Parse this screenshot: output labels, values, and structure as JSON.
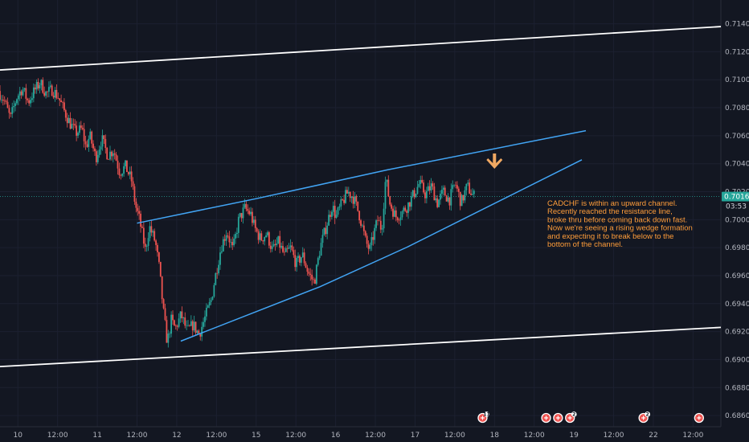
{
  "chart_data": {
    "type": "candlestick",
    "symbol": "CADCHF",
    "y_ticks": [
      "0.71400",
      "0.71200",
      "0.71000",
      "0.70800",
      "0.70600",
      "0.70400",
      "0.70200",
      "0.70000",
      "0.69800",
      "0.69600",
      "0.69400",
      "0.69200",
      "0.69000",
      "0.68800",
      "0.68600"
    ],
    "y_tick_values": [
      0.714,
      0.712,
      0.71,
      0.708,
      0.706,
      0.704,
      0.702,
      0.7,
      0.698,
      0.696,
      0.694,
      0.692,
      0.69,
      0.688,
      0.686
    ],
    "ylim": [
      0.6852,
      0.7157
    ],
    "x_ticks": [
      "10",
      "12:00",
      "11",
      "12:00",
      "12",
      "12:00",
      "15",
      "12:00",
      "16",
      "12:00",
      "17",
      "12:00",
      "18",
      "12:00",
      "19",
      "12:00",
      "22",
      "12:00"
    ],
    "x_tick_values": [
      0,
      1,
      2,
      3,
      4,
      5,
      6,
      7,
      8,
      9,
      10,
      11,
      12,
      13,
      14,
      15,
      16,
      17
    ],
    "xlim": [
      -0.45,
      17.7
    ],
    "current_price": "0.70165",
    "current_price_value": 0.70165,
    "countdown": "03:53",
    "candle_path": [
      [
        -0.45,
        0.7092
      ],
      [
        -0.3,
        0.7085
      ],
      [
        -0.15,
        0.7072
      ],
      [
        0.0,
        0.7087
      ],
      [
        0.15,
        0.7094
      ],
      [
        0.3,
        0.7084
      ],
      [
        0.45,
        0.7092
      ],
      [
        0.6,
        0.7098
      ],
      [
        0.75,
        0.709
      ],
      [
        0.9,
        0.7093
      ],
      [
        1.05,
        0.7088
      ],
      [
        1.2,
        0.7078
      ],
      [
        1.35,
        0.7069
      ],
      [
        1.5,
        0.7062
      ],
      [
        1.65,
        0.7065
      ],
      [
        1.75,
        0.7052
      ],
      [
        1.85,
        0.706
      ],
      [
        2.0,
        0.7044
      ],
      [
        2.15,
        0.7058
      ],
      [
        2.3,
        0.7046
      ],
      [
        2.45,
        0.705
      ],
      [
        2.6,
        0.7034
      ],
      [
        2.75,
        0.7038
      ],
      [
        2.9,
        0.7028
      ],
      [
        3.0,
        0.701
      ],
      [
        3.1,
        0.7
      ],
      [
        3.25,
        0.6978
      ],
      [
        3.35,
        0.6995
      ],
      [
        3.5,
        0.6984
      ],
      [
        3.6,
        0.6965
      ],
      [
        3.7,
        0.6935
      ],
      [
        3.8,
        0.6912
      ],
      [
        3.9,
        0.6928
      ],
      [
        4.0,
        0.6922
      ],
      [
        4.15,
        0.6932
      ],
      [
        4.3,
        0.692
      ],
      [
        4.45,
        0.6925
      ],
      [
        4.6,
        0.6918
      ],
      [
        4.75,
        0.693
      ],
      [
        4.9,
        0.6942
      ],
      [
        5.0,
        0.6958
      ],
      [
        5.15,
        0.698
      ],
      [
        5.3,
        0.6992
      ],
      [
        5.45,
        0.6978
      ],
      [
        5.6,
        0.7
      ],
      [
        5.75,
        0.7008
      ],
      [
        5.9,
        0.7004
      ],
      [
        6.0,
        0.6994
      ],
      [
        6.15,
        0.6986
      ],
      [
        6.3,
        0.699
      ],
      [
        6.45,
        0.6978
      ],
      [
        6.6,
        0.6984
      ],
      [
        6.75,
        0.6974
      ],
      [
        6.9,
        0.698
      ],
      [
        7.05,
        0.6968
      ],
      [
        7.2,
        0.6975
      ],
      [
        7.35,
        0.6962
      ],
      [
        7.5,
        0.6955
      ],
      [
        7.65,
        0.698
      ],
      [
        7.8,
        0.6995
      ],
      [
        7.95,
        0.701
      ],
      [
        8.05,
        0.7002
      ],
      [
        8.2,
        0.7012
      ],
      [
        8.35,
        0.702
      ],
      [
        8.5,
        0.7015
      ],
      [
        8.65,
        0.7002
      ],
      [
        8.8,
        0.6984
      ],
      [
        8.9,
        0.6978
      ],
      [
        9.0,
        0.699
      ],
      [
        9.1,
        0.7
      ],
      [
        9.2,
        0.6993
      ],
      [
        9.3,
        0.703
      ],
      [
        9.4,
        0.7012
      ],
      [
        9.55,
        0.7002
      ],
      [
        9.7,
        0.7005
      ],
      [
        9.85,
        0.701
      ],
      [
        10.0,
        0.7018
      ],
      [
        10.15,
        0.7026
      ],
      [
        10.3,
        0.7018
      ],
      [
        10.45,
        0.7024
      ],
      [
        10.6,
        0.7012
      ],
      [
        10.75,
        0.702
      ],
      [
        10.9,
        0.7014
      ],
      [
        11.05,
        0.7026
      ],
      [
        11.2,
        0.7012
      ],
      [
        11.35,
        0.7024
      ],
      [
        11.5,
        0.7017
      ]
    ],
    "channel_lines": [
      {
        "name": "channel-upper",
        "x": [
          -0.45,
          17.7
        ],
        "y": [
          0.7107,
          0.7138
        ]
      },
      {
        "name": "channel-lower",
        "x": [
          -0.45,
          17.7
        ],
        "y": [
          0.6895,
          0.6923
        ]
      }
    ],
    "wedge_lines": [
      {
        "name": "wedge-upper",
        "x": [
          3.0,
          6.0,
          9.3,
          14.3
        ],
        "y": [
          0.69975,
          0.7015,
          0.70356,
          0.70636
        ]
      },
      {
        "name": "wedge-lower",
        "x": [
          4.1,
          7.6,
          9.8,
          14.2
        ],
        "y": [
          0.69132,
          0.6952,
          0.69804,
          0.70428
        ]
      }
    ],
    "arrow": {
      "x": 12.0,
      "y": 0.7041,
      "direction": "down"
    },
    "annotation": [
      "CADCHF is within an upward channel.",
      "Recently reached the resistance line,",
      "broke thru before coming back down fast.",
      "Now we're seeing a rising wedge formation",
      "and expecting it to break below to the",
      "bottom of the channel."
    ],
    "event_markers": [
      {
        "x": 11.7,
        "count": "11"
      },
      {
        "x": 13.3,
        "count": ""
      },
      {
        "x": 13.6,
        "count": ""
      },
      {
        "x": 13.9,
        "count": "2"
      },
      {
        "x": 15.75,
        "count": "2"
      },
      {
        "x": 17.15,
        "count": ""
      }
    ]
  },
  "colors": {
    "background": "#131722",
    "up": "#26a69a",
    "down": "#ef5350",
    "channel": "#ffffff",
    "wedge": "#42a5f5",
    "price_line": "#26a69a",
    "arrow": "#f0a862",
    "annotation": "#ff9d3a",
    "axis_text": "#b2b5be"
  }
}
